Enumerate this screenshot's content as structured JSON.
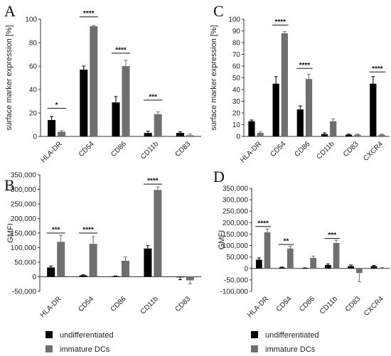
{
  "panels": [
    {
      "letter": "A"
    },
    {
      "letter": "B"
    },
    {
      "letter": "C"
    },
    {
      "letter": "D"
    }
  ],
  "legend": {
    "items": [
      {
        "label": "undifferentiated",
        "color": "#000000"
      },
      {
        "label": "immature DCs",
        "color": "#6f6f6f"
      }
    ]
  },
  "chart_data": [
    {
      "panel": "A",
      "type": "bar",
      "ylabel": "surface marker expression [%]",
      "ylim": [
        0,
        100
      ],
      "yticks": [
        "0",
        "20",
        "40",
        "60",
        "80",
        "100"
      ],
      "categories": [
        "HLA-DR",
        "CD54",
        "CD86",
        "CD11b",
        "CD83"
      ],
      "series": [
        {
          "values": [
            14,
            57,
            29,
            3,
            3
          ],
          "errors": [
            3,
            3,
            5,
            1.5,
            1
          ],
          "color": "#000000"
        },
        {
          "values": [
            4,
            94,
            60,
            19,
            1
          ],
          "errors": [
            1,
            0.7,
            5,
            2,
            1
          ],
          "color": "#6f6f6f"
        }
      ],
      "significance": [
        {
          "category": "HLA-DR",
          "label": "*",
          "at": 24
        },
        {
          "category": "CD54",
          "label": "****",
          "at": 102
        },
        {
          "category": "CD86",
          "label": "****",
          "at": 71
        },
        {
          "category": "CD11b",
          "label": "***",
          "at": 31
        }
      ]
    },
    {
      "panel": "B",
      "type": "bar",
      "ylabel": "GMFI",
      "ylim": [
        -50000,
        350000
      ],
      "yticks": [
        "-50,000",
        "0",
        "50,000",
        "100,000",
        "150,000",
        "200,000",
        "250,000",
        "300,000",
        "350,000"
      ],
      "categories": [
        "HLA-DR",
        "CD54",
        "CD86",
        "CD11b",
        "CD83"
      ],
      "series": [
        {
          "values": [
            32000,
            5000,
            2000,
            97000,
            -2000
          ],
          "errors": [
            5000,
            2000,
            1000,
            10000,
            8000
          ],
          "color": "#000000"
        },
        {
          "values": [
            120000,
            113000,
            55000,
            298000,
            -12000
          ],
          "errors": [
            22000,
            25000,
            13000,
            10000,
            12000
          ],
          "color": "#6f6f6f"
        }
      ],
      "significance": [
        {
          "category": "HLA-DR",
          "label": "***",
          "at": 150000
        },
        {
          "category": "CD54",
          "label": "****",
          "at": 150000
        },
        {
          "category": "CD11b",
          "label": "****",
          "at": 318000
        }
      ]
    },
    {
      "panel": "C",
      "type": "bar",
      "ylabel": "surface marker expression [%]",
      "ylim": [
        0,
        100
      ],
      "yticks": [
        "0",
        "10",
        "20",
        "30",
        "40",
        "50",
        "60",
        "70",
        "80",
        "90",
        "100"
      ],
      "categories": [
        "HLA-DR",
        "CD54",
        "CD86",
        "CD11b",
        "CD83",
        "CXCR4"
      ],
      "series": [
        {
          "values": [
            13,
            45,
            23,
            2,
            1.5,
            45
          ],
          "errors": [
            1,
            6,
            3,
            1,
            0.5,
            6
          ],
          "color": "#000000"
        },
        {
          "values": [
            3,
            88,
            49,
            13,
            1.5,
            1.5
          ],
          "errors": [
            1,
            1.5,
            4,
            2,
            0.5,
            0.5
          ],
          "color": "#6f6f6f"
        }
      ],
      "significance": [
        {
          "category": "CD54",
          "label": "****",
          "at": 95
        },
        {
          "category": "CD86",
          "label": "****",
          "at": 58
        },
        {
          "category": "CXCR4",
          "label": "****",
          "at": 55
        }
      ]
    },
    {
      "panel": "D",
      "type": "bar",
      "ylabel": "GMFI",
      "ylim": [
        -100000,
        350000
      ],
      "yticks": [
        "-100,000",
        "-50,000",
        "0",
        "50,000",
        "100,000",
        "150,000",
        "200,000",
        "250,000",
        "300,000",
        "350,000"
      ],
      "categories": [
        "HLA-DR",
        "CD54",
        "CD86",
        "CD11b",
        "CD83",
        "CXCR4"
      ],
      "series": [
        {
          "values": [
            38000,
            4000,
            1500,
            15000,
            10000,
            10000
          ],
          "errors": [
            8000,
            2000,
            1000,
            5000,
            5000,
            3000
          ],
          "color": "#000000"
        },
        {
          "values": [
            158000,
            87000,
            46000,
            111000,
            -20000,
            2000
          ],
          "errors": [
            15000,
            10000,
            8000,
            12000,
            38000,
            2000
          ],
          "color": "#6f6f6f"
        }
      ],
      "significance": [
        {
          "category": "HLA-DR",
          "label": "****",
          "at": 183000
        },
        {
          "category": "CD54",
          "label": "**",
          "at": 105000
        },
        {
          "category": "CD11b",
          "label": "***",
          "at": 131000
        }
      ]
    }
  ]
}
